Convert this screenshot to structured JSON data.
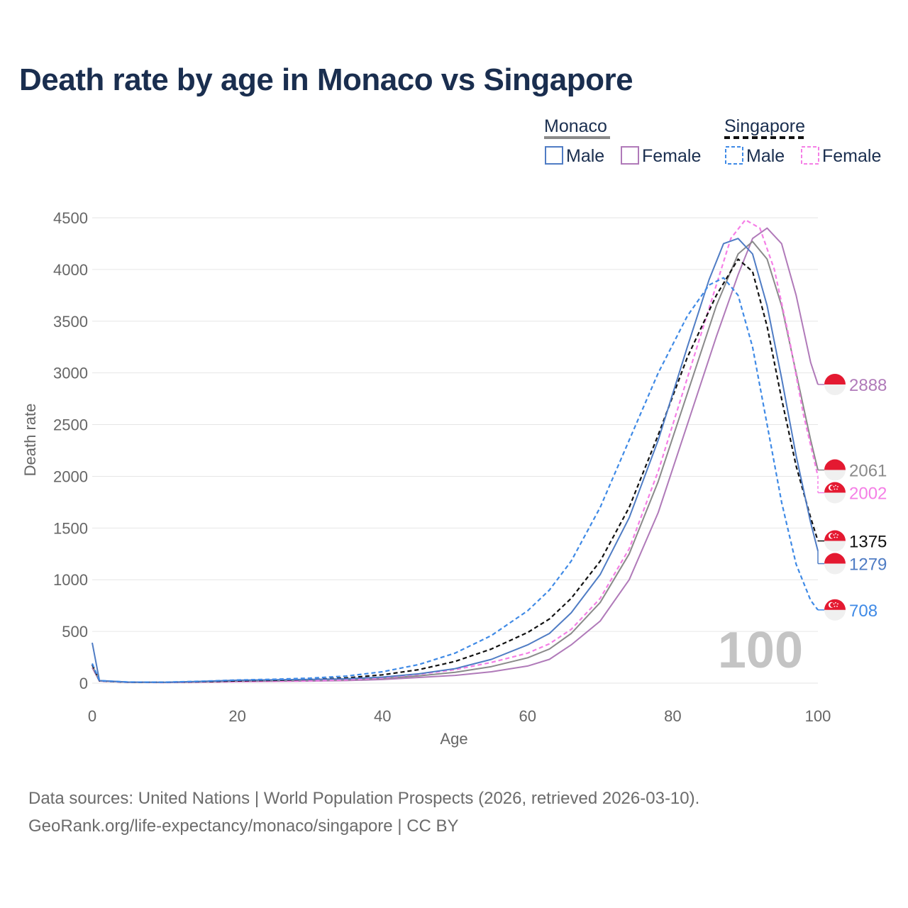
{
  "title": "Death rate by age in Monaco vs Singapore",
  "legend": {
    "groups": [
      {
        "name": "Monaco",
        "line_style": "solid",
        "items": [
          "Male",
          "Female"
        ]
      },
      {
        "name": "Singapore",
        "line_style": "dashed",
        "items": [
          "Male",
          "Female"
        ]
      }
    ]
  },
  "colors": {
    "monaco_male": "#4f7cc4",
    "monaco_female": "#b07ab9",
    "singapore_male": "#3f8ae6",
    "singapore_female": "#f57fe6",
    "monaco_total": "#8a8a8a",
    "singapore_total": "#111111",
    "grid": "#e6e6e6",
    "flag_red": "#e41931"
  },
  "age_indicator": "100",
  "footer": {
    "line1": "Data sources: United Nations | World Population Prospects (2026, retrieved 2026-03-10).",
    "line2": "GeoRank.org/life-expectancy/monaco/singapore | CC BY"
  },
  "chart_data": {
    "type": "line",
    "title": "Death rate by age in Monaco vs Singapore",
    "xlabel": "Age",
    "ylabel": "Death rate",
    "xlim": [
      0,
      100
    ],
    "ylim": [
      -50,
      4600
    ],
    "xticks": [
      0,
      20,
      40,
      60,
      80,
      100
    ],
    "yticks": [
      0,
      500,
      1000,
      1500,
      2000,
      2500,
      3000,
      3500,
      4000,
      4500
    ],
    "series": [
      {
        "key": "monaco_female",
        "name": "Monaco Female",
        "dash": false,
        "flag": "monaco",
        "end_label": "2888",
        "points": [
          [
            0,
            150
          ],
          [
            1,
            20
          ],
          [
            5,
            8
          ],
          [
            10,
            6
          ],
          [
            15,
            10
          ],
          [
            20,
            15
          ],
          [
            25,
            18
          ],
          [
            30,
            20
          ],
          [
            35,
            25
          ],
          [
            40,
            35
          ],
          [
            45,
            55
          ],
          [
            50,
            75
          ],
          [
            55,
            110
          ],
          [
            60,
            165
          ],
          [
            63,
            230
          ],
          [
            66,
            370
          ],
          [
            70,
            600
          ],
          [
            74,
            1000
          ],
          [
            78,
            1650
          ],
          [
            82,
            2500
          ],
          [
            86,
            3350
          ],
          [
            89,
            3950
          ],
          [
            91,
            4300
          ],
          [
            93,
            4400
          ],
          [
            95,
            4250
          ],
          [
            97,
            3750
          ],
          [
            99,
            3100
          ],
          [
            100,
            2888
          ]
        ]
      },
      {
        "key": "monaco_total",
        "name": "Monaco",
        "dash": false,
        "flag": "monaco",
        "end_label": "2061",
        "points": [
          [
            0,
            170
          ],
          [
            1,
            22
          ],
          [
            5,
            9
          ],
          [
            10,
            7
          ],
          [
            15,
            14
          ],
          [
            20,
            22
          ],
          [
            25,
            25
          ],
          [
            30,
            28
          ],
          [
            35,
            33
          ],
          [
            40,
            45
          ],
          [
            45,
            70
          ],
          [
            50,
            105
          ],
          [
            55,
            160
          ],
          [
            60,
            245
          ],
          [
            63,
            330
          ],
          [
            66,
            480
          ],
          [
            70,
            780
          ],
          [
            74,
            1250
          ],
          [
            78,
            1950
          ],
          [
            82,
            2800
          ],
          [
            86,
            3650
          ],
          [
            89,
            4150
          ],
          [
            91,
            4270
          ],
          [
            93,
            4100
          ],
          [
            95,
            3650
          ],
          [
            97,
            3000
          ],
          [
            99,
            2350
          ],
          [
            100,
            2061
          ]
        ]
      },
      {
        "key": "singapore_female",
        "name": "Singapore Female",
        "dash": true,
        "flag": "singapore",
        "end_label": "2002",
        "points": [
          [
            0,
            180
          ],
          [
            1,
            20
          ],
          [
            5,
            8
          ],
          [
            10,
            6
          ],
          [
            15,
            10
          ],
          [
            20,
            14
          ],
          [
            25,
            17
          ],
          [
            30,
            22
          ],
          [
            35,
            32
          ],
          [
            40,
            50
          ],
          [
            45,
            85
          ],
          [
            50,
            130
          ],
          [
            55,
            200
          ],
          [
            60,
            290
          ],
          [
            63,
            380
          ],
          [
            66,
            520
          ],
          [
            70,
            820
          ],
          [
            74,
            1300
          ],
          [
            78,
            2050
          ],
          [
            82,
            2950
          ],
          [
            86,
            3850
          ],
          [
            88,
            4300
          ],
          [
            90,
            4480
          ],
          [
            92,
            4400
          ],
          [
            94,
            4000
          ],
          [
            96,
            3350
          ],
          [
            98,
            2600
          ],
          [
            100,
            2002
          ]
        ]
      },
      {
        "key": "singapore_total",
        "name": "Singapore",
        "dash": true,
        "flag": "singapore",
        "end_label": "1375",
        "points": [
          [
            0,
            180
          ],
          [
            1,
            22
          ],
          [
            5,
            9
          ],
          [
            10,
            8
          ],
          [
            15,
            14
          ],
          [
            20,
            22
          ],
          [
            25,
            27
          ],
          [
            30,
            35
          ],
          [
            35,
            50
          ],
          [
            40,
            80
          ],
          [
            45,
            130
          ],
          [
            50,
            210
          ],
          [
            55,
            330
          ],
          [
            60,
            490
          ],
          [
            63,
            620
          ],
          [
            66,
            820
          ],
          [
            70,
            1180
          ],
          [
            74,
            1700
          ],
          [
            78,
            2400
          ],
          [
            82,
            3150
          ],
          [
            86,
            3750
          ],
          [
            89,
            4100
          ],
          [
            91,
            3980
          ],
          [
            93,
            3450
          ],
          [
            95,
            2750
          ],
          [
            97,
            2100
          ],
          [
            99,
            1600
          ],
          [
            100,
            1375
          ]
        ]
      },
      {
        "key": "monaco_male",
        "name": "Monaco Male",
        "dash": false,
        "flag": "monaco",
        "end_label": "1279",
        "points": [
          [
            0,
            390
          ],
          [
            1,
            25
          ],
          [
            5,
            10
          ],
          [
            10,
            8
          ],
          [
            15,
            17
          ],
          [
            20,
            28
          ],
          [
            25,
            32
          ],
          [
            30,
            36
          ],
          [
            35,
            42
          ],
          [
            40,
            58
          ],
          [
            45,
            90
          ],
          [
            50,
            140
          ],
          [
            55,
            230
          ],
          [
            60,
            370
          ],
          [
            63,
            480
          ],
          [
            66,
            680
          ],
          [
            70,
            1050
          ],
          [
            74,
            1600
          ],
          [
            78,
            2350
          ],
          [
            82,
            3250
          ],
          [
            85,
            3900
          ],
          [
            87,
            4250
          ],
          [
            89,
            4300
          ],
          [
            91,
            4150
          ],
          [
            93,
            3650
          ],
          [
            95,
            2950
          ],
          [
            97,
            2200
          ],
          [
            99,
            1550
          ],
          [
            100,
            1279
          ]
        ]
      },
      {
        "key": "singapore_male",
        "name": "Singapore Male",
        "dash": true,
        "flag": "singapore",
        "end_label": "708",
        "points": [
          [
            0,
            190
          ],
          [
            1,
            24
          ],
          [
            5,
            10
          ],
          [
            10,
            9
          ],
          [
            15,
            18
          ],
          [
            20,
            30
          ],
          [
            25,
            37
          ],
          [
            30,
            48
          ],
          [
            35,
            68
          ],
          [
            40,
            110
          ],
          [
            45,
            180
          ],
          [
            50,
            290
          ],
          [
            55,
            460
          ],
          [
            60,
            700
          ],
          [
            63,
            900
          ],
          [
            66,
            1180
          ],
          [
            70,
            1700
          ],
          [
            74,
            2350
          ],
          [
            78,
            3000
          ],
          [
            82,
            3550
          ],
          [
            85,
            3850
          ],
          [
            87,
            3920
          ],
          [
            89,
            3750
          ],
          [
            91,
            3250
          ],
          [
            93,
            2500
          ],
          [
            95,
            1750
          ],
          [
            97,
            1150
          ],
          [
            99,
            800
          ],
          [
            100,
            708
          ]
        ]
      }
    ],
    "end_label_order": [
      "monaco_female",
      "monaco_total",
      "singapore_female",
      "singapore_total",
      "monaco_male",
      "singapore_male"
    ]
  }
}
